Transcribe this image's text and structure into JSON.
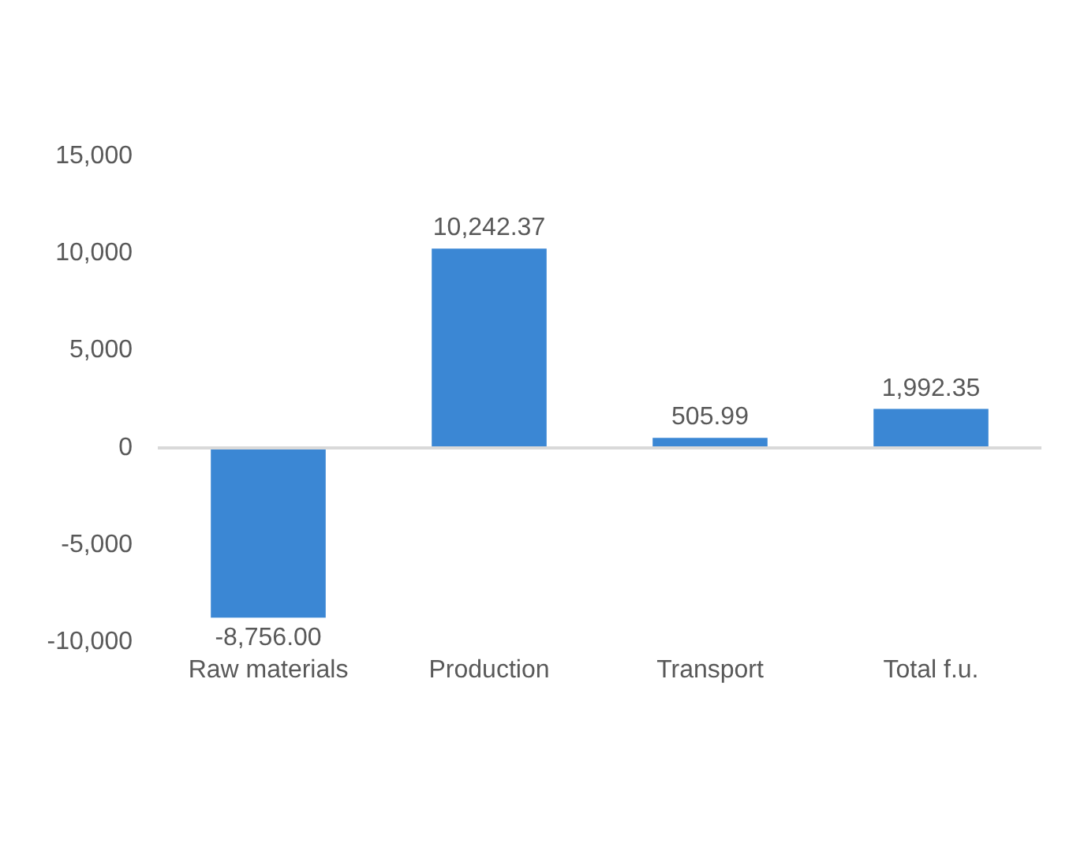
{
  "chart_data": {
    "type": "bar",
    "categories": [
      "Raw materials",
      "Production",
      "Transport",
      "Total f.u."
    ],
    "values": [
      -8756.0,
      10242.37,
      505.99,
      1992.35
    ],
    "value_labels": [
      "-8,756.00",
      "10,242.37",
      "505.99",
      "1,992.35"
    ],
    "color": "#3b87d4",
    "ylim": [
      -10000,
      15000
    ],
    "yticks": [
      {
        "value": -10000,
        "label": "-10,000"
      },
      {
        "value": -5000,
        "label": "-5,000"
      },
      0,
      {
        "value": 5000,
        "label": "5,000"
      },
      {
        "value": 10000,
        "label": "10,000"
      },
      {
        "value": 15000,
        "label": "15,000"
      }
    ],
    "ref_lines": [
      {
        "axis": "y",
        "value": 0,
        "color": "#d9d9d9"
      }
    ]
  }
}
